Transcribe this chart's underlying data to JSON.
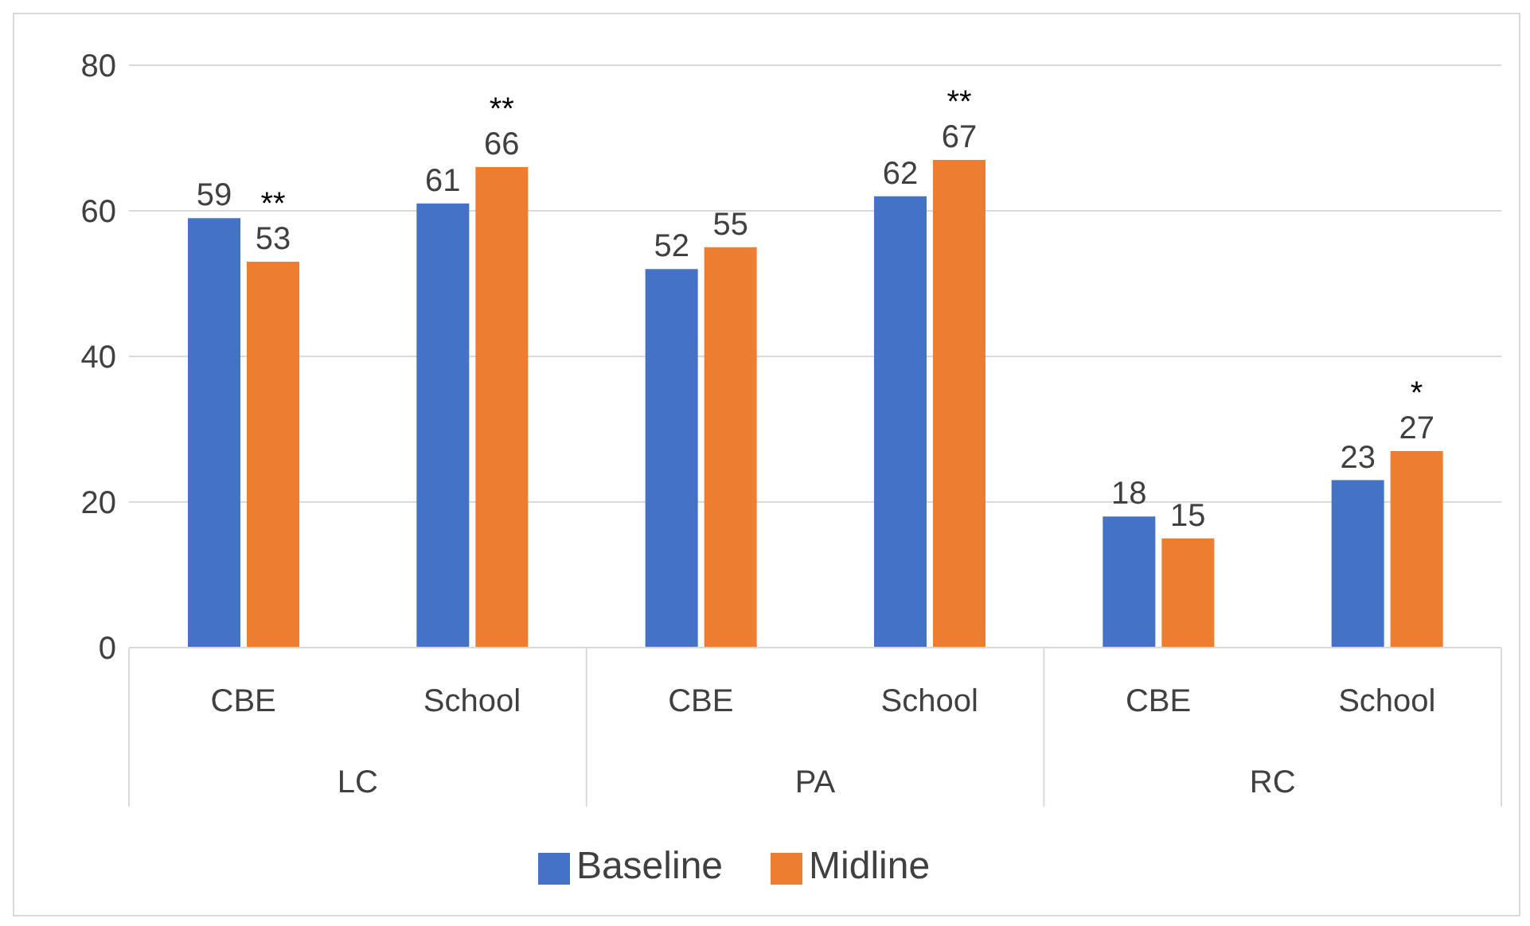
{
  "chart_data": {
    "type": "bar",
    "categories": [
      "CBE",
      "School",
      "CBE",
      "School",
      "CBE",
      "School"
    ],
    "series": [
      {
        "name": "Baseline",
        "color": "#4472c4",
        "values": [
          59,
          61,
          52,
          62,
          18,
          23
        ]
      },
      {
        "name": "Midline",
        "color": "#ed7d31",
        "values": [
          53,
          66,
          55,
          67,
          15,
          27
        ],
        "value_labels": [
          "**\n53",
          "**\n66",
          "55",
          "**\n67",
          "15",
          "*\n27"
        ]
      }
    ],
    "ylim": [
      0,
      80
    ],
    "yticks": [
      0,
      20,
      40,
      60,
      80
    ],
    "grid": "y",
    "legend": "bottom",
    "data_labels": true,
    "annotations": [
      "LC",
      "PA",
      "RC"
    ]
  }
}
